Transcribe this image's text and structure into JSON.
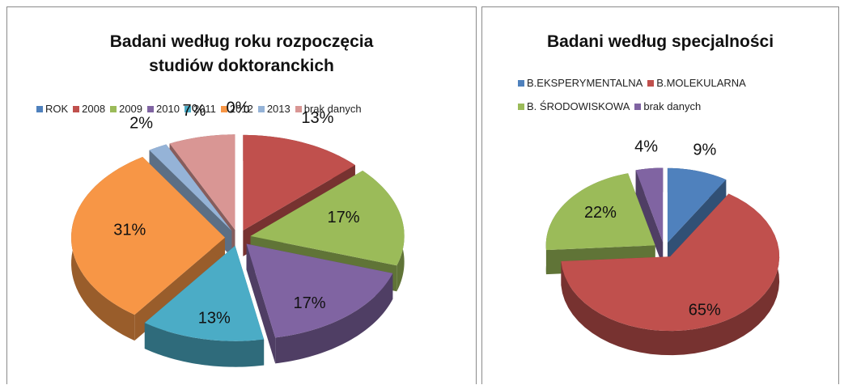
{
  "chart_data": [
    {
      "type": "pie",
      "title": "Badani według roku rozpoczęcia studiów doktoranckich",
      "categories": [
        "ROK",
        "2008",
        "2009",
        "2010",
        "2011",
        "2012",
        "2013",
        "brak danych"
      ],
      "values": [
        0,
        13,
        17,
        17,
        13,
        31,
        2,
        7
      ],
      "value_labels": [
        "0%",
        "13%",
        "17%",
        "17%",
        "13%",
        "31%",
        "2%",
        "7%"
      ],
      "colors": [
        "#4f81bd",
        "#c0504d",
        "#9bbb59",
        "#8064a2",
        "#4bacc6",
        "#f79646",
        "#95b3d7",
        "#d99694"
      ],
      "legend": "top"
    },
    {
      "type": "pie",
      "title": "Badani według specjalności",
      "categories": [
        "B.EKSPERYMENTALNA",
        "B.MOLEKULARNA",
        "B. ŚRODOWISKOWA",
        "brak danych"
      ],
      "values": [
        9,
        65,
        22,
        4
      ],
      "value_labels": [
        "9%",
        "65%",
        "22%",
        "4%"
      ],
      "colors": [
        "#4f81bd",
        "#c0504d",
        "#9bbb59",
        "#8064a2"
      ],
      "legend": "top"
    }
  ]
}
